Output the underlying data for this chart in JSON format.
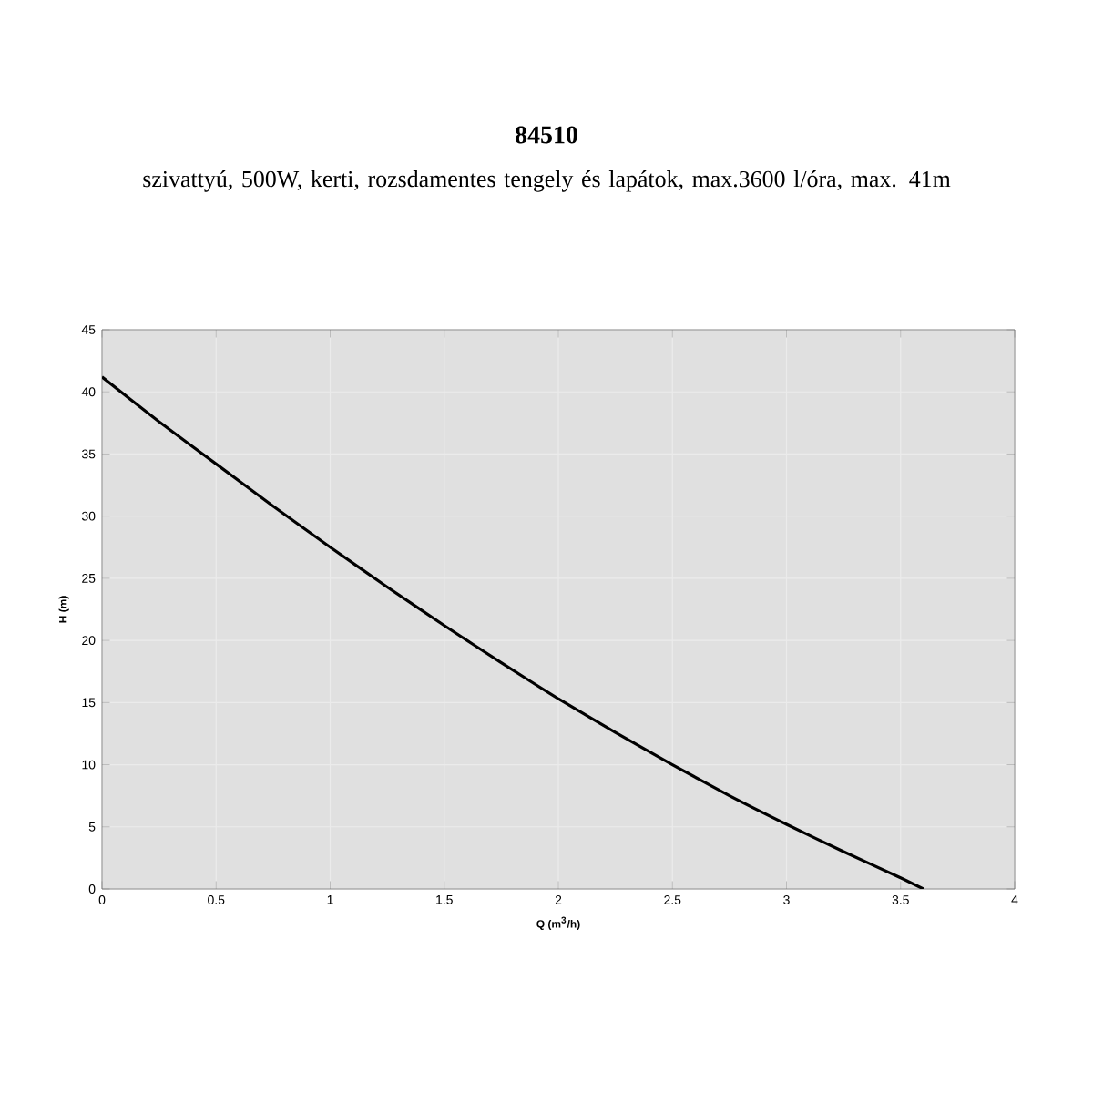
{
  "chart_data": {
    "type": "line",
    "title": "84510",
    "subtitle": "szivattyú, 500W, kerti, rozsdamentes tengely és lapátok, max.3600 l/óra, max. 41m",
    "xlabel": "Q (m$^{3}$/h)",
    "ylabel": "H (m)",
    "series": [
      {
        "color": "#000000",
        "x": [
          0,
          0.25,
          0.5,
          0.75,
          1,
          1.25,
          1.5,
          1.75,
          2,
          2.25,
          2.5,
          2.75,
          3,
          3.25,
          3.5,
          3.6
        ],
        "values": [
          41.2,
          37.6,
          34.2,
          30.8,
          27.5,
          24.3,
          21.2,
          18.2,
          15.3,
          12.6,
          10.0,
          7.5,
          5.2,
          3.0,
          0.9,
          0
        ]
      }
    ],
    "xlim": [
      0,
      4
    ],
    "ylim": [
      0,
      45
    ],
    "xticks": [
      0,
      0.5,
      1,
      1.5,
      2,
      2.5,
      3,
      3.5,
      4
    ],
    "yticks": [
      0,
      5,
      10,
      15,
      20,
      25,
      30,
      35,
      40,
      45
    ],
    "grid": true,
    "marker": "none",
    "line_style": "solid"
  }
}
